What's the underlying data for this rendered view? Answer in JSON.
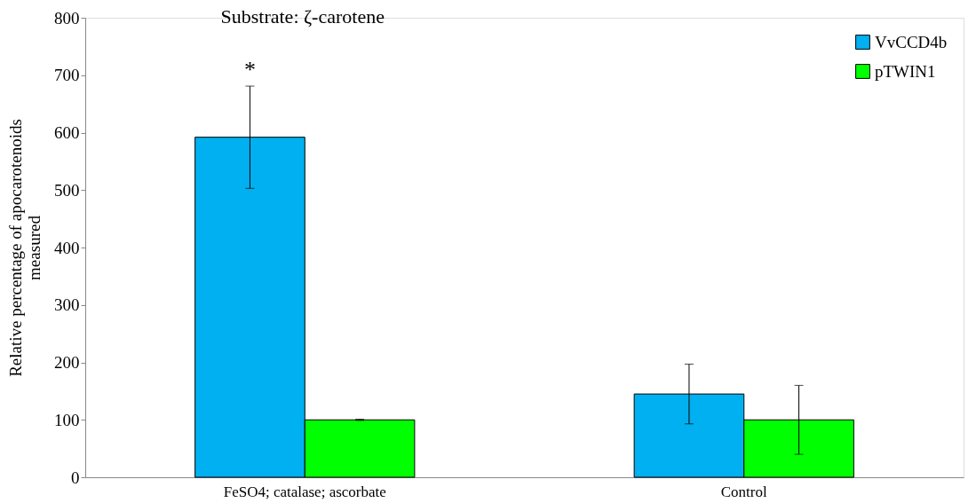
{
  "chart_data": {
    "type": "bar",
    "title": "Substrate: ζ-carotene",
    "ylabel": "Relative percentage of apocarotenoids measured",
    "categories": [
      "FeSO4; catalase; ascorbate",
      "Control"
    ],
    "series": [
      {
        "name": "VvCCD4b",
        "color": "#00b0f0",
        "values": [
          592,
          145
        ],
        "errors": [
          89,
          52
        ]
      },
      {
        "name": "pTWIN1",
        "color": "#00ff00",
        "values": [
          100,
          100
        ],
        "errors": [
          1,
          60
        ]
      }
    ],
    "ylim": [
      0,
      800
    ],
    "yticks": [
      0,
      100,
      200,
      300,
      400,
      500,
      600,
      700,
      800
    ],
    "annotations": [
      "*"
    ],
    "legend": "top right",
    "grid": false
  }
}
